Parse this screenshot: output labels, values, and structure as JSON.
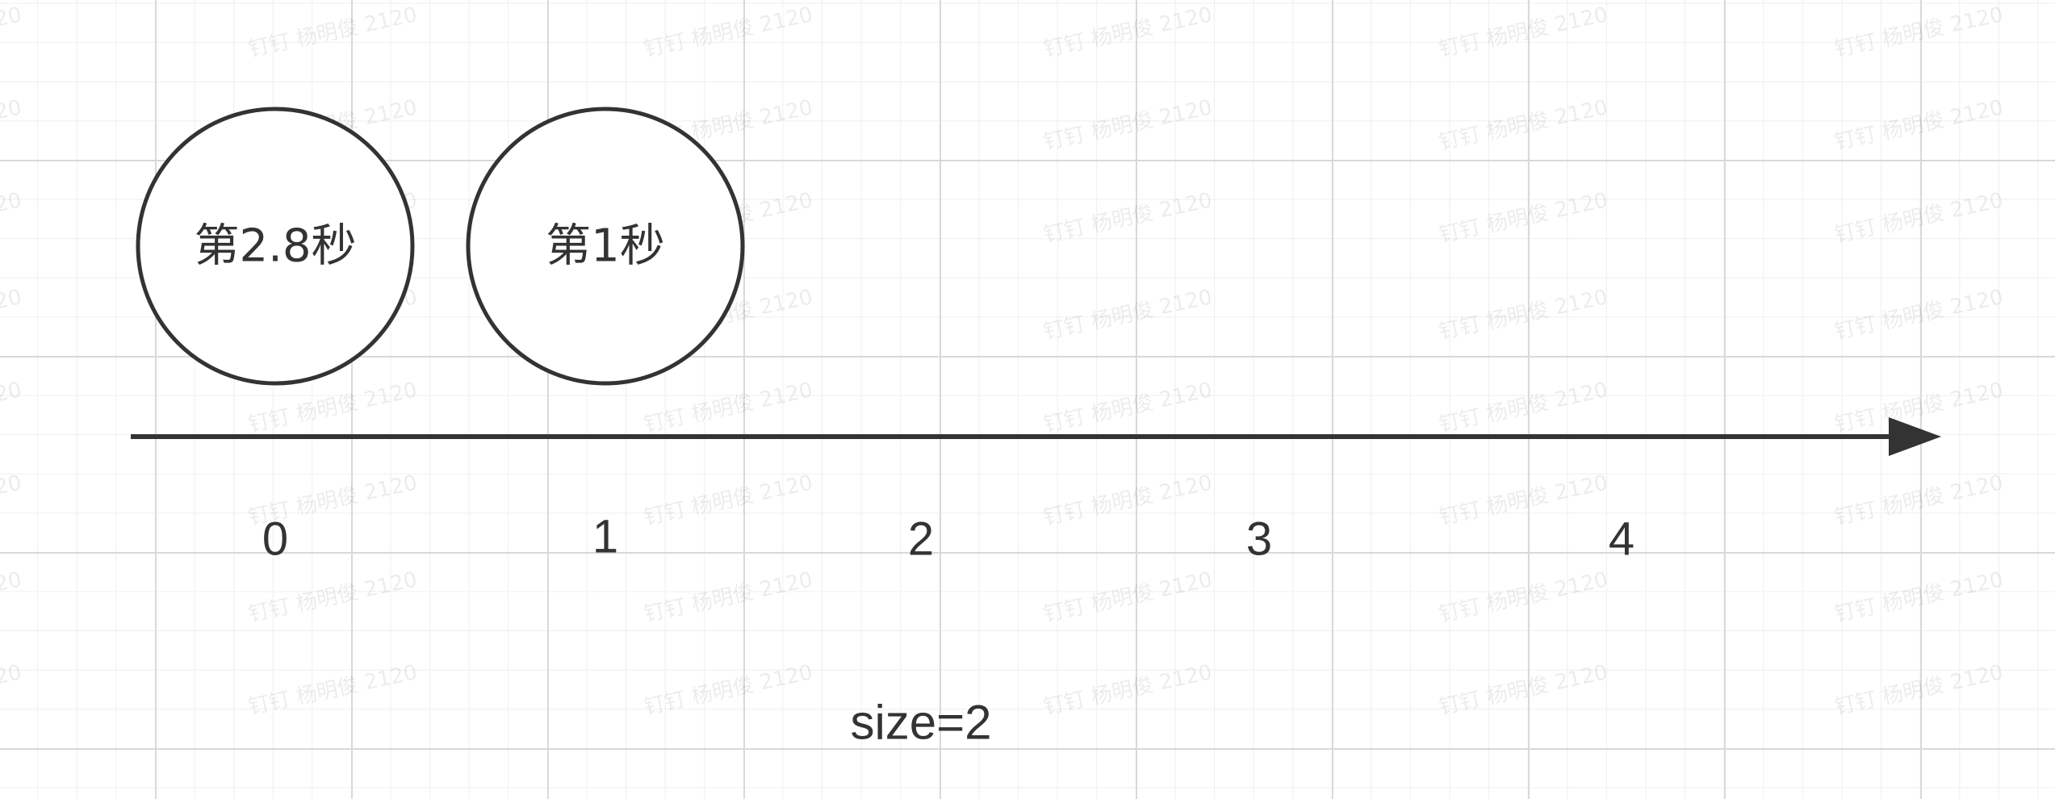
{
  "nodes": [
    {
      "label": "第2.8秒",
      "slot": 0
    },
    {
      "label": "第1秒",
      "slot": 1
    }
  ],
  "axis_ticks": [
    "0",
    "1",
    "2",
    "3",
    "4"
  ],
  "caption": "size=2",
  "watermark": "钉钉 杨明俊 2120"
}
